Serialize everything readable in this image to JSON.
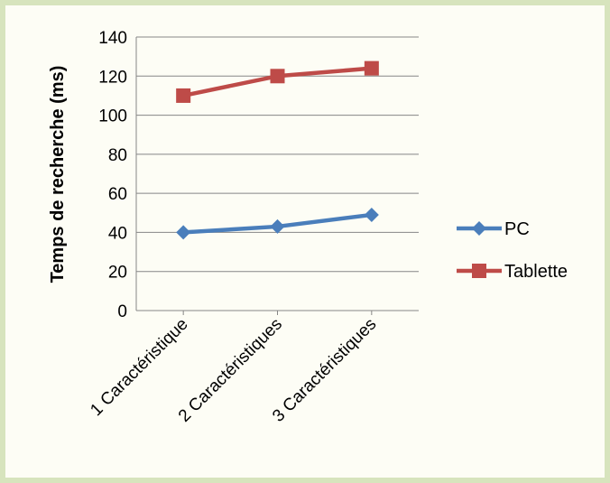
{
  "chart_data": {
    "type": "line",
    "title": "",
    "xlabel": "",
    "ylabel": "Temps de recherche (ms)",
    "categories": [
      "1 Caractéristique",
      "2 Caractéristiques",
      "3 Caractéristiques"
    ],
    "ylim": [
      0,
      140
    ],
    "yticks": [
      0,
      20,
      40,
      60,
      80,
      100,
      120,
      140
    ],
    "grid": true,
    "legend_position": "right",
    "series": [
      {
        "name": "PC",
        "values": [
          40,
          43,
          49
        ],
        "color": "#4a7ebb",
        "marker": "diamond"
      },
      {
        "name": "Tablette",
        "values": [
          110,
          120,
          124
        ],
        "color": "#be4b48",
        "marker": "square"
      }
    ]
  }
}
